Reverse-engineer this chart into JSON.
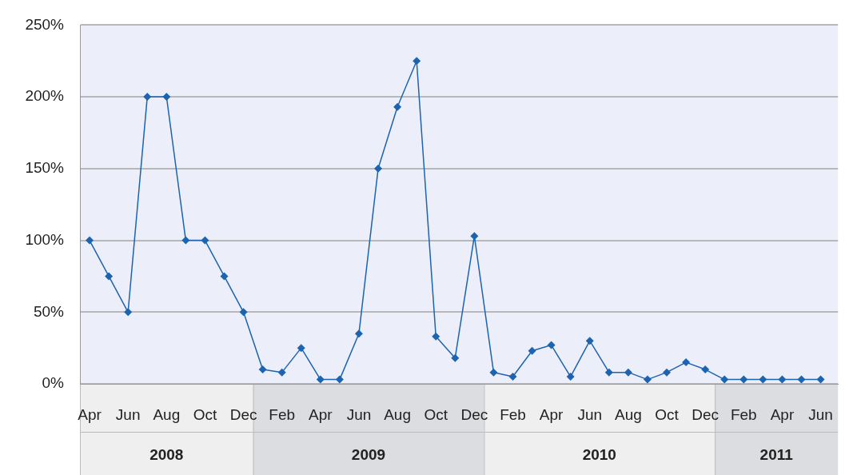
{
  "chart_data": {
    "type": "line",
    "x": [
      "2008-04",
      "2008-05",
      "2008-06",
      "2008-07",
      "2008-08",
      "2008-09",
      "2008-10",
      "2008-11",
      "2008-12",
      "2009-01",
      "2009-02",
      "2009-03",
      "2009-04",
      "2009-05",
      "2009-06",
      "2009-07",
      "2009-08",
      "2009-09",
      "2009-10",
      "2009-11",
      "2009-12",
      "2010-01",
      "2010-02",
      "2010-03",
      "2010-04",
      "2010-05",
      "2010-06",
      "2010-07",
      "2010-08",
      "2010-09",
      "2010-10",
      "2010-11",
      "2010-12",
      "2011-01",
      "2011-02",
      "2011-03",
      "2011-04",
      "2011-05",
      "2011-06"
    ],
    "series": [
      {
        "color": "#1c63b0",
        "values": [
          100,
          75,
          50,
          200,
          200,
          100,
          100,
          75,
          50,
          10,
          8,
          25,
          3,
          3,
          35,
          150,
          193,
          225,
          33,
          18,
          103,
          8,
          5,
          23,
          27,
          5,
          30,
          8,
          8,
          3,
          8,
          15,
          10,
          3,
          3,
          3,
          3,
          3,
          3
        ]
      }
    ],
    "xlim": [
      "2008-03-16",
      "2011-06-28"
    ],
    "xticks": [
      {
        "value": "2008-04",
        "label": "Apr"
      },
      {
        "value": "2008-06",
        "label": "Jun"
      },
      {
        "value": "2008-08",
        "label": "Aug"
      },
      {
        "value": "2008-10",
        "label": "Oct"
      },
      {
        "value": "2008-12",
        "label": "Dec"
      },
      {
        "value": "2009-02",
        "label": "Feb"
      },
      {
        "value": "2009-04",
        "label": "Apr"
      },
      {
        "value": "2009-06",
        "label": "Jun"
      },
      {
        "value": "2009-08",
        "label": "Aug"
      },
      {
        "value": "2009-10",
        "label": "Oct"
      },
      {
        "value": "2009-12",
        "label": "Dec"
      },
      {
        "value": "2010-02",
        "label": "Feb"
      },
      {
        "value": "2010-04",
        "label": "Apr"
      },
      {
        "value": "2010-06",
        "label": "Jun"
      },
      {
        "value": "2010-08",
        "label": "Aug"
      },
      {
        "value": "2010-10",
        "label": "Oct"
      },
      {
        "value": "2010-12",
        "label": "Dec"
      },
      {
        "value": "2011-02",
        "label": "Feb"
      },
      {
        "value": "2011-04",
        "label": "Apr"
      },
      {
        "value": "2011-06",
        "label": "Jun"
      }
    ],
    "ylim": [
      0,
      250
    ],
    "yticks": [
      {
        "value": 0,
        "label": "0%"
      },
      {
        "value": 50,
        "label": "50%"
      },
      {
        "value": 100,
        "label": "100%"
      },
      {
        "value": 150,
        "label": "150%"
      },
      {
        "value": 200,
        "label": "200%"
      },
      {
        "value": 250,
        "label": "250%"
      }
    ],
    "annotations": [
      "2008",
      "2009",
      "2010",
      "2011"
    ],
    "grid": "y",
    "marker": "diamond",
    "line_style": "solid",
    "legend": false
  }
}
